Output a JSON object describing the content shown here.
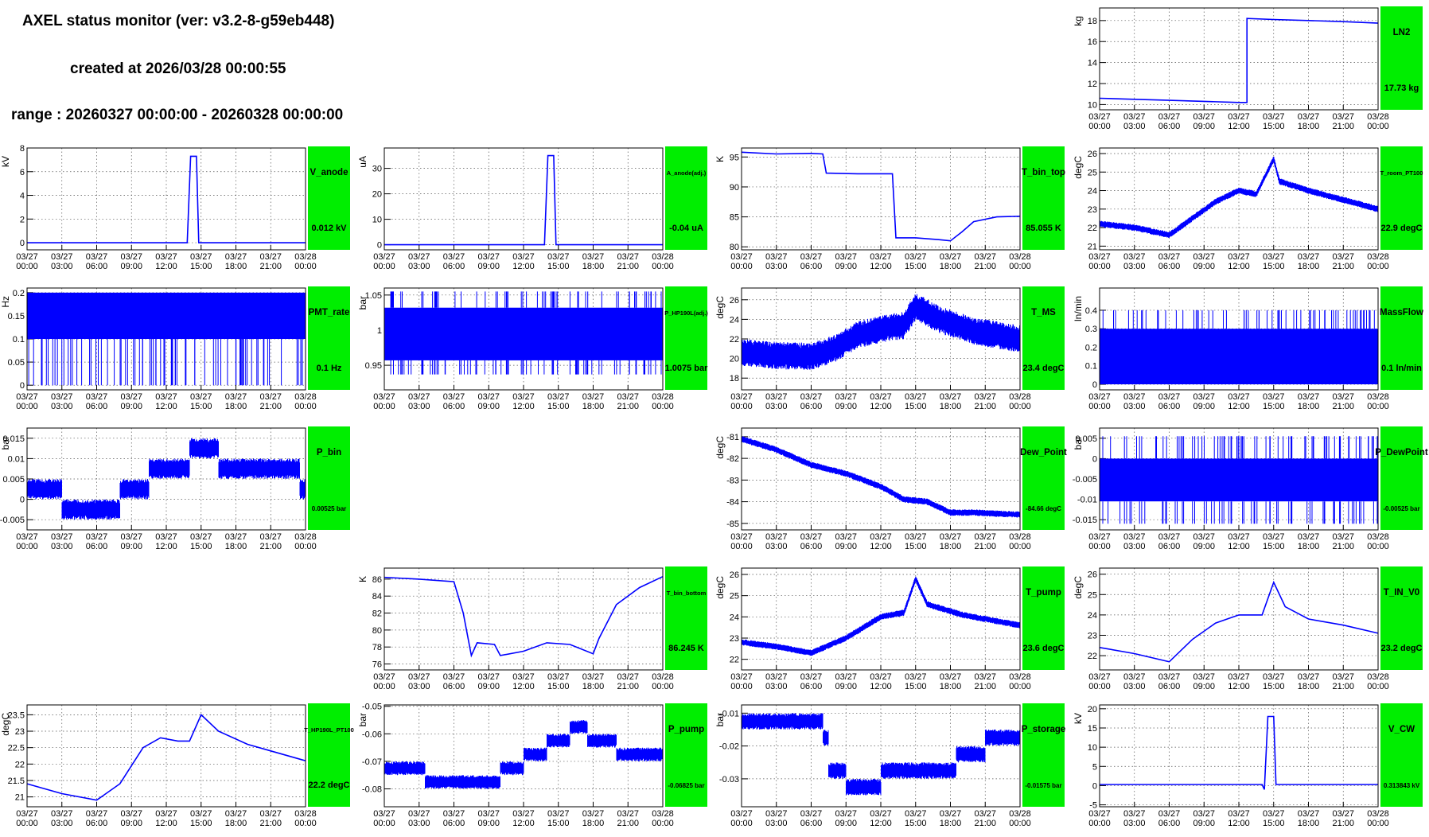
{
  "header": {
    "title": "AXEL status monitor (ver: v3.2-8-g59eb448)",
    "created": "created at 2026/03/28 00:00:55",
    "range": "range : 20260327 00:00:00 - 20260328 00:00:00"
  },
  "colors": {
    "line": "#0000ff",
    "status_box": "#00ee00",
    "grid": "#555555",
    "axis": "#000000"
  },
  "x_ticks": [
    [
      "03/27",
      "00:00"
    ],
    [
      "03/27",
      "03:00"
    ],
    [
      "03/27",
      "06:00"
    ],
    [
      "03/27",
      "09:00"
    ],
    [
      "03/27",
      "12:00"
    ],
    [
      "03/27",
      "15:00"
    ],
    [
      "03/27",
      "18:00"
    ],
    [
      "03/27",
      "21:00"
    ],
    [
      "03/28",
      "00:00"
    ]
  ],
  "chart_data": [
    {
      "id": "LN2",
      "type": "line",
      "title": "LN2",
      "value": "17.73 kg",
      "ylabel": "kg",
      "ylim": [
        9.5,
        19.2
      ],
      "yticks": [
        "10",
        "12",
        "14",
        "16",
        "18"
      ],
      "ytick_vals": [
        10,
        12,
        14,
        16,
        18
      ],
      "xlim": [
        0,
        24
      ],
      "style": "line",
      "points": [
        [
          0,
          10.6
        ],
        [
          3,
          10.5
        ],
        [
          6,
          10.4
        ],
        [
          9,
          10.3
        ],
        [
          12,
          10.2
        ],
        [
          12.7,
          10.2
        ],
        [
          12.7,
          18.2
        ],
        [
          15,
          18.1
        ],
        [
          18,
          18.0
        ],
        [
          21,
          17.9
        ],
        [
          24,
          17.75
        ]
      ]
    },
    {
      "id": "V_anode",
      "type": "line",
      "title": "V_anode",
      "value": "0.012 kV",
      "ylabel": "kV",
      "ylim": [
        -0.6,
        8
      ],
      "yticks": [
        "0",
        "2",
        "4",
        "6",
        "8"
      ],
      "ytick_vals": [
        0,
        2,
        4,
        6,
        8
      ],
      "xlim": [
        0,
        24
      ],
      "style": "line",
      "points": [
        [
          0,
          0
        ],
        [
          13.8,
          0
        ],
        [
          14.1,
          7.3
        ],
        [
          14.6,
          7.3
        ],
        [
          14.8,
          0
        ],
        [
          24,
          0
        ]
      ]
    },
    {
      "id": "A_anode",
      "type": "line",
      "title": "A_anode(adj.)",
      "value": "-0.04 uA",
      "ylabel": "uA",
      "ylim": [
        -2,
        38
      ],
      "yticks": [
        "0",
        "10",
        "20",
        "30"
      ],
      "ytick_vals": [
        0,
        10,
        20,
        30
      ],
      "xlim": [
        0,
        24
      ],
      "style": "line",
      "points": [
        [
          0,
          0
        ],
        [
          13.8,
          0
        ],
        [
          14.1,
          35
        ],
        [
          14.6,
          35
        ],
        [
          14.8,
          0
        ],
        [
          24,
          0
        ]
      ]
    },
    {
      "id": "T_bin_top",
      "type": "line",
      "title": "T_bin_top",
      "value": "85.055 K",
      "ylabel": "K",
      "ylim": [
        79.5,
        96.5
      ],
      "yticks": [
        "80",
        "85",
        "90",
        "95"
      ],
      "ytick_vals": [
        80,
        85,
        90,
        95
      ],
      "xlim": [
        0,
        24
      ],
      "style": "line",
      "points": [
        [
          0,
          95.8
        ],
        [
          3,
          95.5
        ],
        [
          6,
          95.6
        ],
        [
          7,
          95.5
        ],
        [
          7.3,
          92.3
        ],
        [
          10,
          92.2
        ],
        [
          13,
          92.2
        ],
        [
          13.3,
          81.5
        ],
        [
          15,
          81.5
        ],
        [
          17,
          81.2
        ],
        [
          18,
          81.0
        ],
        [
          19,
          82.5
        ],
        [
          20,
          84.2
        ],
        [
          22,
          85.0
        ],
        [
          24,
          85.1
        ]
      ]
    },
    {
      "id": "T_room_PT100",
      "type": "line",
      "title": "T_room_PT100",
      "value": "22.9 degC",
      "ylabel": "degC",
      "ylim": [
        20.8,
        26.3
      ],
      "yticks": [
        "21",
        "22",
        "23",
        "24",
        "25",
        "26"
      ],
      "ytick_vals": [
        21,
        22,
        23,
        24,
        25,
        26
      ],
      "xlim": [
        0,
        24
      ],
      "style": "band",
      "band": 0.35,
      "points": [
        [
          0,
          22.2
        ],
        [
          3,
          22.0
        ],
        [
          6,
          21.6
        ],
        [
          8,
          22.5
        ],
        [
          10,
          23.4
        ],
        [
          12,
          24.0
        ],
        [
          13.5,
          23.8
        ],
        [
          15,
          25.7
        ],
        [
          15.5,
          24.5
        ],
        [
          18,
          24.0
        ],
        [
          21,
          23.5
        ],
        [
          24,
          23.0
        ]
      ]
    },
    {
      "id": "PMT_rate",
      "type": "line",
      "title": "PMT_rate",
      "value": "0.1 Hz",
      "ylabel": "Hz",
      "ylim": [
        -0.01,
        0.21
      ],
      "yticks": [
        "0",
        "0.05",
        "0.1",
        "0.15",
        "0.2"
      ],
      "ytick_vals": [
        0,
        0.05,
        0.1,
        0.15,
        0.2
      ],
      "xlim": [
        0,
        24
      ],
      "style": "fill",
      "fill": [
        0.1,
        0.2
      ],
      "spike_lo": 0,
      "points": [
        [
          0,
          0.1
        ],
        [
          24,
          0.1
        ]
      ]
    },
    {
      "id": "P_HP190L",
      "type": "line",
      "title": "P_HP190L(adj.)",
      "value": "1.0075 bar",
      "ylabel": "bar",
      "ylim": [
        0.915,
        1.06
      ],
      "yticks": [
        "0.95",
        "1",
        "1.05"
      ],
      "ytick_vals": [
        0.95,
        1,
        1.05
      ],
      "xlim": [
        0,
        24
      ],
      "style": "fill",
      "fill": [
        0.957,
        1.032
      ],
      "spike_lo": 0.937,
      "spike_hi": 1.055,
      "points": [
        [
          0,
          1.0
        ],
        [
          24,
          1.0
        ]
      ]
    },
    {
      "id": "T_MS",
      "type": "line",
      "title": "T_MS",
      "value": "23.4 degC",
      "ylabel": "degC",
      "ylim": [
        16.8,
        27.2
      ],
      "yticks": [
        "18",
        "20",
        "22",
        "24",
        "26"
      ],
      "ytick_vals": [
        18,
        20,
        22,
        24,
        26
      ],
      "xlim": [
        0,
        24
      ],
      "style": "band",
      "band": 2.8,
      "points": [
        [
          0,
          20.6
        ],
        [
          3,
          20.3
        ],
        [
          6,
          20.2
        ],
        [
          8,
          21.0
        ],
        [
          10,
          22.4
        ],
        [
          12,
          23.0
        ],
        [
          14,
          23.4
        ],
        [
          15,
          25.3
        ],
        [
          17,
          24.0
        ],
        [
          20,
          22.8
        ],
        [
          24,
          22.0
        ]
      ]
    },
    {
      "id": "MassFlow",
      "type": "line",
      "title": "MassFlow",
      "value": "0.1 ln/min",
      "ylabel": "ln/min",
      "ylim": [
        -0.03,
        0.52
      ],
      "yticks": [
        "0",
        "0.1",
        "0.2",
        "0.3",
        "0.4"
      ],
      "ytick_vals": [
        0,
        0.1,
        0.2,
        0.3,
        0.4
      ],
      "xlim": [
        0,
        24
      ],
      "style": "fill",
      "fill": [
        0.0,
        0.3
      ],
      "spike_lo": 0,
      "spike_hi": 0.4,
      "points": [
        [
          0,
          0.1
        ],
        [
          24,
          0.1
        ]
      ]
    },
    {
      "id": "P_bin",
      "type": "line",
      "title": "P_bin",
      "value": "0.00525 bar",
      "ylabel": "bar",
      "ylim": [
        -0.0075,
        0.0175
      ],
      "yticks": [
        "-0.005",
        "0",
        "0.005",
        "0.01",
        "0.015"
      ],
      "ytick_vals": [
        -0.005,
        0,
        0.005,
        0.01,
        0.015
      ],
      "xlim": [
        0,
        24
      ],
      "style": "step",
      "band": 0.005,
      "points": [
        [
          0,
          0.0025
        ],
        [
          3,
          0.0025
        ],
        [
          3,
          -0.0025
        ],
        [
          6,
          -0.0025
        ],
        [
          8,
          -0.0025
        ],
        [
          8,
          0.0025
        ],
        [
          10.5,
          0.0025
        ],
        [
          10.5,
          0.0075
        ],
        [
          14,
          0.0075
        ],
        [
          14,
          0.0125
        ],
        [
          16.5,
          0.0125
        ],
        [
          16.5,
          0.0075
        ],
        [
          23.5,
          0.0075
        ],
        [
          23.5,
          0.0025
        ],
        [
          24,
          0.0025
        ]
      ]
    },
    {
      "id": "Dew_Point",
      "type": "line",
      "title": "Dew_Point",
      "value": "-84.66 degC",
      "ylabel": "degC",
      "ylim": [
        -85.3,
        -80.6
      ],
      "yticks": [
        "-85",
        "-84",
        "-83",
        "-82",
        "-81"
      ],
      "ytick_vals": [
        -85,
        -84,
        -83,
        -82,
        -81
      ],
      "xlim": [
        0,
        24
      ],
      "style": "band",
      "band": 0.3,
      "points": [
        [
          0,
          -81.1
        ],
        [
          3,
          -81.6
        ],
        [
          6,
          -82.3
        ],
        [
          9,
          -82.7
        ],
        [
          12,
          -83.3
        ],
        [
          14,
          -83.9
        ],
        [
          16,
          -84.0
        ],
        [
          18,
          -84.5
        ],
        [
          20,
          -84.5
        ],
        [
          24,
          -84.6
        ]
      ]
    },
    {
      "id": "P_DewPoint",
      "type": "line",
      "title": "P_DewPoint",
      "value": "-0.00525 bar",
      "ylabel": "bar",
      "ylim": [
        -0.0175,
        0.0075
      ],
      "yticks": [
        "-0.015",
        "-0.01",
        "-0.005",
        "0",
        "0.005"
      ],
      "ytick_vals": [
        -0.015,
        -0.01,
        -0.005,
        0,
        0.005
      ],
      "xlim": [
        0,
        24
      ],
      "style": "fill",
      "fill": [
        -0.0105,
        0.0
      ],
      "spike_lo": -0.016,
      "spike_hi": 0.0055,
      "points": [
        [
          0,
          -0.005
        ],
        [
          24,
          -0.005
        ]
      ]
    },
    {
      "id": "T_bin_bottom",
      "type": "line",
      "title": "T_bin_bottom",
      "value": "86.245 K",
      "ylabel": "K",
      "ylim": [
        75.3,
        87.3
      ],
      "yticks": [
        "76",
        "78",
        "80",
        "82",
        "84",
        "86"
      ],
      "ytick_vals": [
        76,
        78,
        80,
        82,
        84,
        86
      ],
      "xlim": [
        0,
        24
      ],
      "style": "line",
      "points": [
        [
          0,
          86.2
        ],
        [
          3,
          86.0
        ],
        [
          6,
          85.7
        ],
        [
          6.8,
          82
        ],
        [
          7.5,
          77.0
        ],
        [
          8,
          78.5
        ],
        [
          9.5,
          78.3
        ],
        [
          10,
          77.0
        ],
        [
          12,
          77.5
        ],
        [
          14,
          78.5
        ],
        [
          16,
          78.3
        ],
        [
          18,
          77.2
        ],
        [
          18.5,
          79
        ],
        [
          20,
          83.0
        ],
        [
          22,
          85.0
        ],
        [
          24,
          86.3
        ]
      ]
    },
    {
      "id": "T_pump",
      "type": "line",
      "title": "T_pump",
      "value": "23.6 degC",
      "ylabel": "degC",
      "ylim": [
        21.5,
        26.3
      ],
      "yticks": [
        "22",
        "23",
        "24",
        "25",
        "26"
      ],
      "ytick_vals": [
        22,
        23,
        24,
        25,
        26
      ],
      "xlim": [
        0,
        24
      ],
      "style": "band",
      "band": 0.3,
      "points": [
        [
          0,
          22.8
        ],
        [
          3,
          22.6
        ],
        [
          6,
          22.3
        ],
        [
          9,
          23.0
        ],
        [
          12,
          24.0
        ],
        [
          14,
          24.2
        ],
        [
          15,
          25.8
        ],
        [
          16,
          24.6
        ],
        [
          19,
          24.1
        ],
        [
          24,
          23.6
        ]
      ]
    },
    {
      "id": "T_IN_V0",
      "type": "line",
      "title": "T_IN_V0",
      "value": "23.2 degC",
      "ylabel": "degC",
      "ylim": [
        21.3,
        26.3
      ],
      "yticks": [
        "22",
        "23",
        "24",
        "25",
        "26"
      ],
      "ytick_vals": [
        22,
        23,
        24,
        25,
        26
      ],
      "xlim": [
        0,
        24
      ],
      "style": "line",
      "points": [
        [
          0,
          22.4
        ],
        [
          3,
          22.1
        ],
        [
          6,
          21.7
        ],
        [
          8,
          22.8
        ],
        [
          10,
          23.6
        ],
        [
          12,
          24.0
        ],
        [
          14,
          24.0
        ],
        [
          15,
          25.6
        ],
        [
          16,
          24.4
        ],
        [
          18,
          23.8
        ],
        [
          21,
          23.5
        ],
        [
          24,
          23.1
        ]
      ]
    },
    {
      "id": "T_HP190L_PT100",
      "type": "line",
      "title": "T_HP190L_PT100",
      "value": "22.2 degC",
      "ylabel": "degC",
      "ylim": [
        20.7,
        23.8
      ],
      "yticks": [
        "21",
        "21.5",
        "22",
        "22.5",
        "23",
        "23.5"
      ],
      "ytick_vals": [
        21,
        21.5,
        22,
        22.5,
        23,
        23.5
      ],
      "xlim": [
        0,
        24
      ],
      "style": "line",
      "points": [
        [
          0,
          21.4
        ],
        [
          3,
          21.1
        ],
        [
          6,
          20.9
        ],
        [
          8,
          21.4
        ],
        [
          10,
          22.5
        ],
        [
          11.5,
          22.8
        ],
        [
          13,
          22.7
        ],
        [
          14,
          22.7
        ],
        [
          15,
          23.5
        ],
        [
          16.5,
          23.0
        ],
        [
          19,
          22.6
        ],
        [
          21,
          22.4
        ],
        [
          24,
          22.1
        ]
      ]
    },
    {
      "id": "P_pump",
      "type": "line",
      "title": "P_pump",
      "value": "-0.06825 bar",
      "ylabel": "bar",
      "ylim": [
        -0.0865,
        -0.0495
      ],
      "yticks": [
        "-0.08",
        "-0.07",
        "-0.06",
        "-0.05"
      ],
      "ytick_vals": [
        -0.08,
        -0.07,
        -0.06,
        -0.05
      ],
      "xlim": [
        0,
        24
      ],
      "style": "step",
      "band": 0.005,
      "points": [
        [
          0,
          -0.0725
        ],
        [
          3.5,
          -0.0725
        ],
        [
          3.5,
          -0.0775
        ],
        [
          10,
          -0.0775
        ],
        [
          10,
          -0.0725
        ],
        [
          12,
          -0.0725
        ],
        [
          12,
          -0.0675
        ],
        [
          14,
          -0.0675
        ],
        [
          14,
          -0.0625
        ],
        [
          16,
          -0.0625
        ],
        [
          16,
          -0.0575
        ],
        [
          17.5,
          -0.0575
        ],
        [
          17.5,
          -0.0625
        ],
        [
          20,
          -0.0625
        ],
        [
          20,
          -0.0675
        ],
        [
          24,
          -0.0675
        ]
      ]
    },
    {
      "id": "P_storage",
      "type": "line",
      "title": "P_storage",
      "value": "-0.01575 bar",
      "ylabel": "bar",
      "ylim": [
        -0.0385,
        -0.0075
      ],
      "yticks": [
        "-0.03",
        "-0.02",
        "-0.01"
      ],
      "ytick_vals": [
        -0.03,
        -0.02,
        -0.01
      ],
      "xlim": [
        0,
        24
      ],
      "style": "step",
      "band": 0.005,
      "points": [
        [
          0,
          -0.0125
        ],
        [
          7,
          -0.0125
        ],
        [
          7,
          -0.0175
        ],
        [
          7.5,
          -0.0175
        ],
        [
          7.5,
          -0.0275
        ],
        [
          9,
          -0.0275
        ],
        [
          9,
          -0.0325
        ],
        [
          12,
          -0.0325
        ],
        [
          12,
          -0.0275
        ],
        [
          18.5,
          -0.0275
        ],
        [
          18.5,
          -0.0225
        ],
        [
          21,
          -0.0225
        ],
        [
          21,
          -0.0175
        ],
        [
          24,
          -0.0175
        ]
      ]
    },
    {
      "id": "V_CW",
      "type": "line",
      "title": "V_CW",
      "value": "0.313843 kV",
      "ylabel": "kV",
      "ylim": [
        -5.5,
        21
      ],
      "yticks": [
        "-5",
        "0",
        "5",
        "10",
        "15",
        "20"
      ],
      "ytick_vals": [
        -5,
        0,
        5,
        10,
        15,
        20
      ],
      "xlim": [
        0,
        24
      ],
      "style": "line",
      "points": [
        [
          0,
          0.3
        ],
        [
          14,
          0.3
        ],
        [
          14.2,
          -1
        ],
        [
          14.5,
          18
        ],
        [
          15,
          18
        ],
        [
          15.2,
          0.3
        ],
        [
          24,
          0.3
        ]
      ]
    }
  ]
}
